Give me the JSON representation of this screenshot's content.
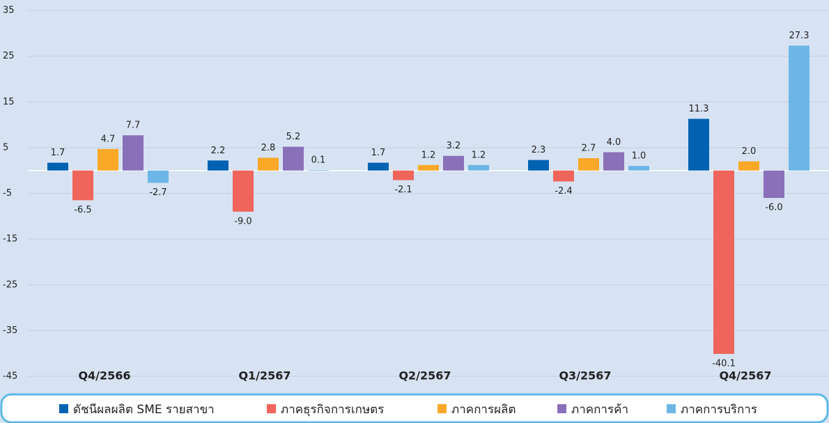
{
  "chart_data": {
    "type": "bar",
    "categories": [
      "Q4/2566",
      "Q1/2567",
      "Q2/2567",
      "Q3/2567",
      "Q4/2567"
    ],
    "series": [
      {
        "name": "ดัชนีผลผลิต SME รายสาขา",
        "color": "#0062b1",
        "values": [
          1.7,
          2.2,
          1.7,
          2.3,
          11.3
        ],
        "value_labels": [
          "1.7",
          "2.2",
          "1.7",
          "2.3",
          "11.3"
        ]
      },
      {
        "name": "ภาคธุรกิจการเกษตร",
        "color": "#f0655b",
        "values": [
          -6.5,
          -9.0,
          -2.1,
          -2.4,
          -40.1
        ],
        "value_labels": [
          "-6.5",
          "-9.0",
          "-2.1",
          "-2.4",
          "-40.1"
        ]
      },
      {
        "name": "ภาคการผลิต",
        "color": "#f9a828",
        "values": [
          4.7,
          2.8,
          1.2,
          2.7,
          2.0
        ],
        "value_labels": [
          "4.7",
          "2.8",
          "1.2",
          "2.7",
          "2.0"
        ]
      },
      {
        "name": "ภาคการค้า",
        "color": "#8a70b8",
        "values": [
          7.7,
          5.2,
          3.2,
          4.0,
          -6.0
        ],
        "value_labels": [
          "7.7",
          "5.2",
          "3.2",
          "4.0",
          "-6.0"
        ]
      },
      {
        "name": "ภาคการบริการ",
        "color": "#6cb6e6",
        "values": [
          -2.7,
          0.1,
          1.2,
          1.0,
          27.3
        ],
        "value_labels": [
          "-2.7",
          "0.1",
          "1.2",
          "1.0",
          "27.3"
        ]
      }
    ],
    "ylim": [
      -45,
      35
    ],
    "yticks": [
      -45,
      -35,
      -25,
      -15,
      -5,
      5,
      15,
      25,
      35
    ],
    "grid": true,
    "legend": "bottom"
  }
}
